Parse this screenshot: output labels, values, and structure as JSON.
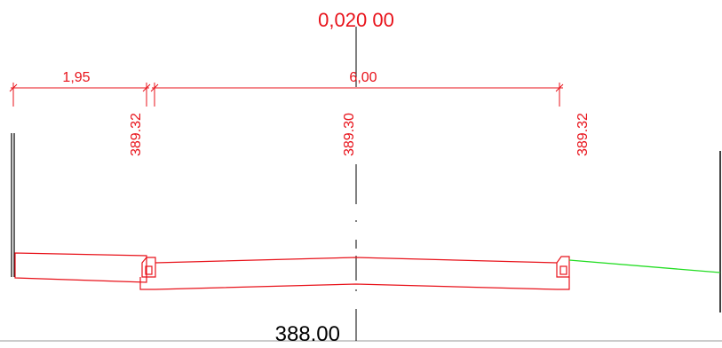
{
  "section": {
    "chainage": "0,020 00",
    "datum_level": "388.00",
    "dimensions": {
      "sidewalk_width": "1,95",
      "carriageway_width": "6,00"
    },
    "elevations": {
      "left_curb": "389.32",
      "centerline": "389.30",
      "right_curb": "389.32"
    }
  },
  "colors": {
    "annotation": "#e8121a",
    "structure": "#e8121a",
    "terrain": "#22dd22",
    "axis": "#000000",
    "frame": "#000000"
  }
}
